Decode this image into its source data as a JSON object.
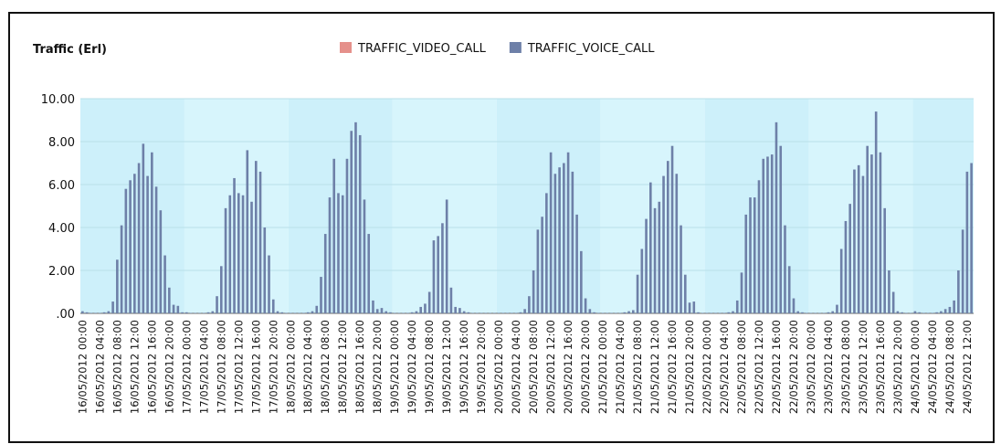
{
  "chart_data": {
    "type": "bar",
    "y_axis_title": "Traffic (Erl)",
    "categories": [
      "16/05/2012 00:00",
      null,
      null,
      null,
      "16/05/2012 04:00",
      null,
      null,
      null,
      "16/05/2012 08:00",
      null,
      null,
      null,
      "16/05/2012 12:00",
      null,
      null,
      null,
      "16/05/2012 16:00",
      null,
      null,
      null,
      "16/05/2012 20:00",
      null,
      null,
      null,
      "17/05/2012 00:00",
      null,
      null,
      null,
      "17/05/2012 04:00",
      null,
      null,
      null,
      "17/05/2012 08:00",
      null,
      null,
      null,
      "17/05/2012 12:00",
      null,
      null,
      null,
      "17/05/2012 16:00",
      null,
      null,
      null,
      "17/05/2012 20:00",
      null,
      null,
      null,
      "18/05/2012 00:00",
      null,
      null,
      null,
      "18/05/2012 04:00",
      null,
      null,
      null,
      "18/05/2012 08:00",
      null,
      null,
      null,
      "18/05/2012 12:00",
      null,
      null,
      null,
      "18/05/2012 16:00",
      null,
      null,
      null,
      "18/05/2012 20:00",
      null,
      null,
      null,
      "19/05/2012 00:00",
      null,
      null,
      null,
      "19/05/2012 04:00",
      null,
      null,
      null,
      "19/05/2012 08:00",
      null,
      null,
      null,
      "19/05/2012 12:00",
      null,
      null,
      null,
      "19/05/2012 16:00",
      null,
      null,
      null,
      "19/05/2012 20:00",
      null,
      null,
      null,
      "20/05/2012 00:00",
      null,
      null,
      null,
      "20/05/2012 04:00",
      null,
      null,
      null,
      "20/05/2012 08:00",
      null,
      null,
      null,
      "20/05/2012 12:00",
      null,
      null,
      null,
      "20/05/2012 16:00",
      null,
      null,
      null,
      "20/05/2012 20:00",
      null,
      null,
      null,
      "21/05/2012 00:00",
      null,
      null,
      null,
      "21/05/2012 04:00",
      null,
      null,
      null,
      "21/05/2012 08:00",
      null,
      null,
      null,
      "21/05/2012 12:00",
      null,
      null,
      null,
      "21/05/2012 16:00",
      null,
      null,
      null,
      "21/05/2012 20:00",
      null,
      null,
      null,
      "22/05/2012 00:00",
      null,
      null,
      null,
      "22/05/2012 04:00",
      null,
      null,
      null,
      "22/05/2012 08:00",
      null,
      null,
      null,
      "22/05/2012 12:00",
      null,
      null,
      null,
      "22/05/2012 16:00",
      null,
      null,
      null,
      "22/05/2012 20:00",
      null,
      null,
      null,
      "23/05/2012 00:00",
      null,
      null,
      null,
      "23/05/2012 04:00",
      null,
      null,
      null,
      "23/05/2012 08:00",
      null,
      null,
      null,
      "23/05/2012 12:00",
      null,
      null,
      null,
      "23/05/2012 16:00",
      null,
      null,
      null,
      "23/05/2012 20:00",
      null,
      null,
      null,
      "24/05/2012 00:00",
      null,
      null,
      null,
      "24/05/2012 04:00",
      null,
      null,
      null,
      "24/05/2012 08:00",
      null,
      null,
      null,
      "24/05/2012 12:00",
      null
    ],
    "series": [
      {
        "name": "TRAFFIC_VIDEO_CALL",
        "color": "#e5908b",
        "values": [
          0,
          0,
          0,
          0,
          0,
          0,
          0,
          0,
          0,
          0,
          0,
          0,
          0,
          0,
          0,
          0,
          0,
          0,
          0,
          0,
          0,
          0,
          0,
          0,
          0,
          0,
          0,
          0,
          0,
          0,
          0,
          0,
          0,
          0,
          0,
          0,
          0,
          0,
          0,
          0,
          0,
          0,
          0,
          0,
          0,
          0,
          0,
          0,
          0,
          0,
          0,
          0,
          0,
          0,
          0,
          0,
          0,
          0,
          0,
          0,
          0,
          0,
          0,
          0,
          0,
          0,
          0,
          0,
          0,
          0,
          0,
          0,
          0,
          0,
          0,
          0,
          0,
          0,
          0,
          0,
          0,
          0,
          0,
          0,
          0,
          0,
          0,
          0,
          0,
          0,
          0,
          0,
          0,
          0,
          0,
          0,
          0,
          0,
          0,
          0,
          0,
          0,
          0,
          0,
          0,
          0,
          0,
          0,
          0,
          0,
          0,
          0,
          0,
          0,
          0,
          0,
          0,
          0,
          0,
          0,
          0,
          0,
          0,
          0,
          0,
          0,
          0,
          0,
          0,
          0,
          0,
          0,
          0,
          0,
          0,
          0,
          0,
          0,
          0,
          0,
          0,
          0,
          0,
          0,
          0,
          0,
          0,
          0,
          0,
          0,
          0,
          0,
          0,
          0,
          0,
          0,
          0,
          0,
          0,
          0,
          0,
          0,
          0,
          0,
          0,
          0,
          0,
          0,
          0,
          0,
          0,
          0,
          0,
          0,
          0,
          0,
          0,
          0,
          0,
          0,
          0,
          0,
          0,
          0,
          0,
          0,
          0,
          0,
          0,
          0,
          0,
          0,
          0,
          0,
          0,
          0,
          0,
          0,
          0,
          0,
          0,
          0,
          0,
          0,
          0,
          0
        ]
      },
      {
        "name": "TRAFFIC_VOICE_CALL",
        "color": "#6e80a8",
        "values": [
          0.1,
          0.05,
          0.02,
          0.02,
          0.02,
          0.05,
          0.1,
          0.55,
          2.5,
          4.1,
          5.8,
          6.2,
          6.5,
          7.0,
          7.9,
          6.4,
          7.5,
          5.9,
          4.8,
          2.7,
          1.2,
          0.4,
          0.35,
          0.05,
          0.05,
          0.02,
          0.02,
          0.02,
          0.02,
          0.05,
          0.1,
          0.8,
          2.2,
          4.9,
          5.5,
          6.3,
          5.6,
          5.5,
          7.6,
          5.2,
          7.1,
          6.6,
          4.0,
          2.7,
          0.65,
          0.1,
          0.05,
          0.02,
          0.02,
          0.02,
          0.02,
          0.02,
          0.05,
          0.1,
          0.35,
          1.7,
          3.7,
          5.4,
          7.2,
          5.6,
          5.5,
          7.2,
          8.5,
          8.9,
          8.3,
          5.3,
          3.7,
          0.6,
          0.2,
          0.25,
          0.1,
          0.05,
          0.02,
          0.02,
          0.02,
          0.02,
          0.05,
          0.1,
          0.3,
          0.45,
          1.0,
          3.4,
          3.6,
          4.2,
          5.3,
          1.2,
          0.3,
          0.25,
          0.1,
          0.05,
          0.02,
          0.02,
          0.02,
          0.02,
          0.02,
          0.02,
          0.02,
          0.02,
          0.02,
          0.02,
          0.02,
          0.05,
          0.2,
          0.8,
          2.0,
          3.9,
          4.5,
          5.6,
          7.5,
          6.5,
          6.8,
          7.0,
          7.5,
          6.6,
          4.6,
          2.9,
          0.7,
          0.2,
          0.05,
          0.02,
          0.02,
          0.02,
          0.02,
          0.02,
          0.02,
          0.05,
          0.1,
          0.15,
          1.8,
          3.0,
          4.4,
          6.1,
          4.9,
          5.2,
          6.4,
          7.1,
          7.8,
          6.5,
          4.1,
          1.8,
          0.5,
          0.55,
          0.05,
          0.02,
          0.02,
          0.02,
          0.02,
          0.02,
          0.02,
          0.05,
          0.1,
          0.6,
          1.9,
          4.6,
          5.4,
          5.4,
          6.2,
          7.2,
          7.3,
          7.4,
          8.9,
          7.8,
          4.1,
          2.2,
          0.7,
          0.1,
          0.05,
          0.02,
          0.02,
          0.02,
          0.02,
          0.02,
          0.05,
          0.1,
          0.4,
          3.0,
          4.3,
          5.1,
          6.7,
          6.9,
          6.4,
          7.8,
          7.4,
          9.4,
          7.5,
          4.9,
          2.0,
          1.0,
          0.1,
          0.05,
          0.02,
          0.02,
          0.1,
          0.05,
          0.02,
          0.02,
          0.02,
          0.05,
          0.1,
          0.2,
          0.3,
          0.6,
          2.0,
          3.9,
          6.6,
          7.0
        ]
      }
    ],
    "ylim": [
      0,
      10
    ],
    "yticks": [
      {
        "value": 0,
        "label": ".00"
      },
      {
        "value": 2,
        "label": "2.00"
      },
      {
        "value": 4,
        "label": "4.00"
      },
      {
        "value": 6,
        "label": "6.00"
      },
      {
        "value": 8,
        "label": "8.00"
      },
      {
        "value": 10,
        "label": "10.00"
      }
    ],
    "grid": true,
    "legend": "top"
  }
}
